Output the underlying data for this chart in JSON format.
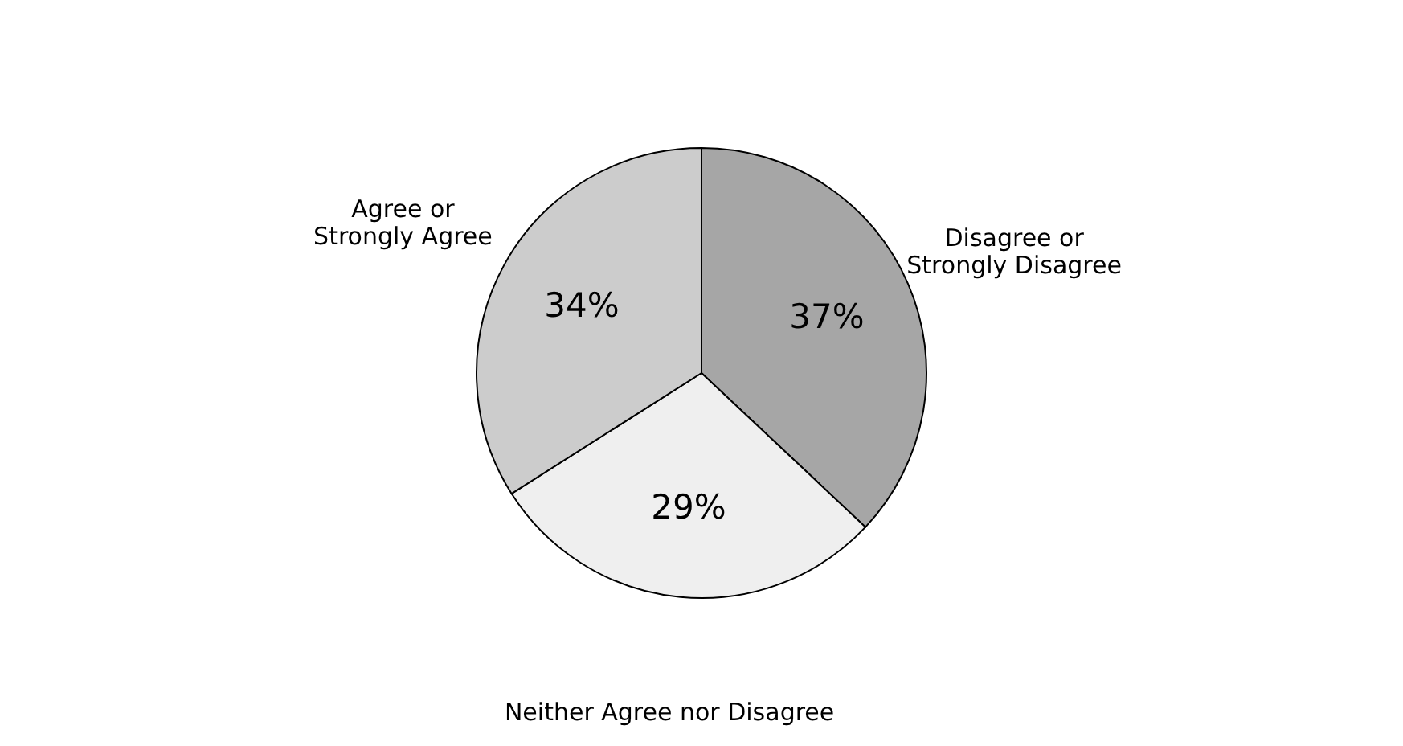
{
  "chart_data": {
    "type": "pie",
    "categories": [
      "Disagree or\nStrongly Disagree",
      "Neither Agree nor Disagree",
      "Agree or\nStrongly Agree"
    ],
    "values": [
      37,
      29,
      34
    ],
    "value_labels": [
      "37%",
      "29%",
      "34%"
    ],
    "colors": [
      "#a6a6a6",
      "#efefef",
      "#cccccc"
    ],
    "legend": false
  }
}
